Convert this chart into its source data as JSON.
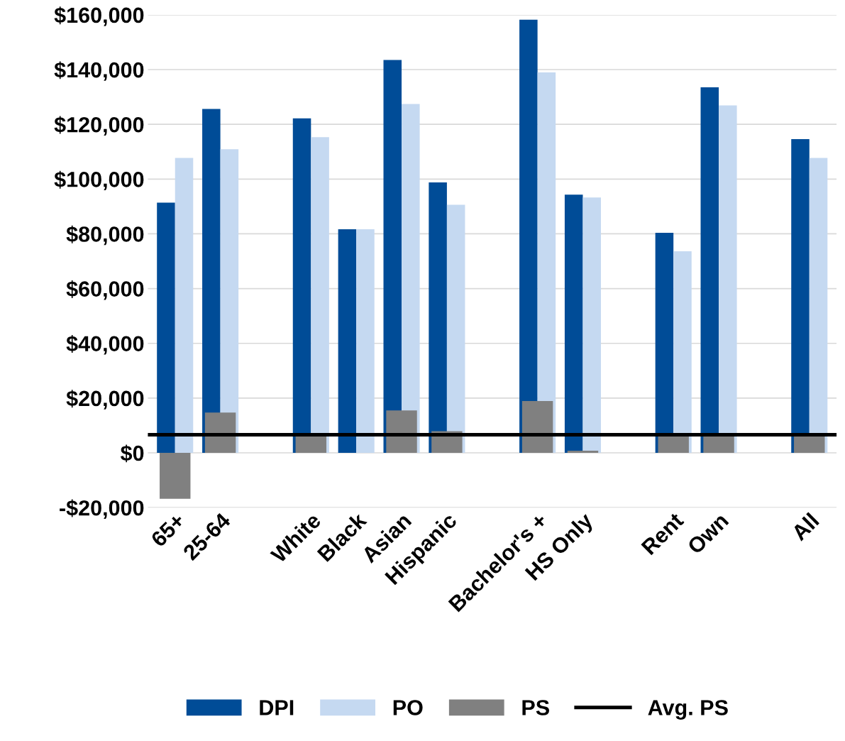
{
  "chart_data": {
    "type": "bar",
    "categories": [
      "65+",
      "25-64",
      null,
      "White",
      "Black",
      "Asian",
      "Hispanic",
      null,
      "Bachelor's +",
      "HS Only",
      null,
      "Rent",
      "Own",
      null,
      "All"
    ],
    "series": [
      {
        "name": "DPI",
        "color": "#004c97",
        "values": [
          91400,
          125600,
          null,
          122200,
          81700,
          143500,
          98800,
          null,
          158200,
          94300,
          null,
          80400,
          133500,
          null,
          114600
        ]
      },
      {
        "name": "PO",
        "color": "#c5d9f1",
        "values": [
          107700,
          110900,
          null,
          115300,
          81700,
          127400,
          90600,
          null,
          139000,
          93300,
          null,
          73600,
          126900,
          null,
          107700
        ]
      },
      {
        "name": "PS",
        "color": "#808080",
        "values": [
          -16800,
          14700,
          null,
          6600,
          0,
          15500,
          7900,
          null,
          18900,
          800,
          null,
          6600,
          6600,
          null,
          6600
        ]
      }
    ],
    "ref_lines": [
      {
        "axis": "y",
        "value": 6600,
        "label": "Avg. PS",
        "color": "#000000",
        "line_style": "solid"
      }
    ],
    "ylim": [
      -20000,
      160000
    ],
    "yticks": [
      {
        "value": -20000,
        "label": "-$20,000"
      },
      {
        "value": 0,
        "label": "$0"
      },
      {
        "value": 20000,
        "label": "$20,000"
      },
      {
        "value": 40000,
        "label": "$40,000"
      },
      {
        "value": 60000,
        "label": "$60,000"
      },
      {
        "value": 80000,
        "label": "$80,000"
      },
      {
        "value": 100000,
        "label": "$100,000"
      },
      {
        "value": 120000,
        "label": "$120,000"
      },
      {
        "value": 140000,
        "label": "$140,000"
      },
      {
        "value": 160000,
        "label": "$160,000"
      }
    ],
    "grid": "y",
    "legend": "bottom"
  }
}
